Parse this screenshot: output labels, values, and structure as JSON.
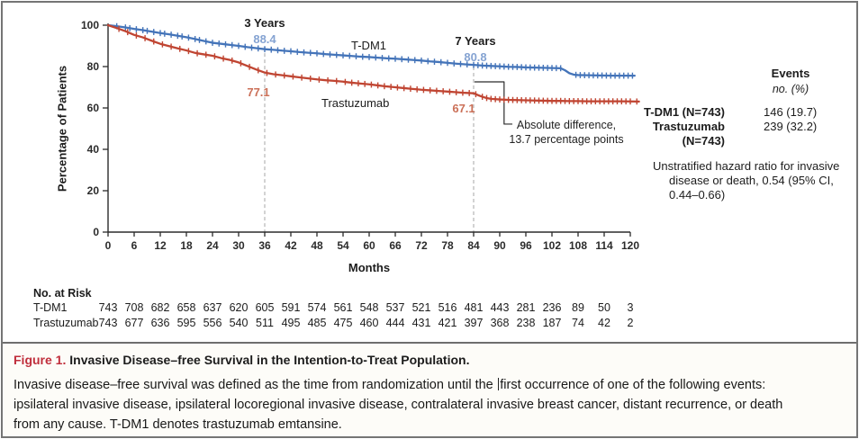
{
  "colors": {
    "tdm1": "#4474b9",
    "trastuzumab": "#c04532",
    "tdm1_value_label": "#85a3d2",
    "trastuzumab_value_label": "#cb7058",
    "dashed_reference": "#bbbbbb",
    "axis": "#2b2b2b",
    "caption_red": "#c02e3c"
  },
  "axes": {
    "y_label": "Percentage of Patients",
    "x_label": "Months"
  },
  "annotations": {
    "three_years": "3 Years",
    "tdm1_3y_value": "88.4",
    "tras_3y_value": "77.1",
    "seven_years": "7 Years",
    "tdm1_7y_value": "80.8",
    "tras_7y_value": "67.1",
    "tdm1_curve_label": "T-DM1",
    "tras_curve_label": "Trastuzumab",
    "abs_diff_line1": "Absolute difference,",
    "abs_diff_line2": "13.7 percentage points"
  },
  "stats_panel": {
    "events_header": "Events",
    "events_unit": "no. (%)",
    "rows": [
      {
        "label": "T-DM1 (N=743)",
        "value": "146 (19.7)"
      },
      {
        "label": "Trastuzumab",
        "value": "239 (32.2)"
      },
      {
        "label": "(N=743)",
        "value": ""
      }
    ],
    "hazard_line1": "Unstratified hazard ratio for invasive",
    "hazard_line2": "disease or death, 0.54 (95% CI,",
    "hazard_line3": "0.44–0.66)"
  },
  "caption": {
    "label": "Figure 1.",
    "title": "Invasive Disease–free Survival in the Intention-to-Treat Population.",
    "body_line1_a": "Invasive disease–free survival was defined as the time from randomization until the ",
    "body_line1_b": "first occurrence of one of the following events:",
    "body_line2": "ipsilateral invasive disease, ipsilateral locoregional invasive disease, contralateral invasive breast cancer, distant recurrence, or death",
    "body_line3": "from any cause. T-DM1 denotes trastuzumab emtansine."
  },
  "chart_data": {
    "type": "line",
    "subtype": "kaplan-meier",
    "title": "Invasive Disease-free Survival in the Intention-to-Treat Population",
    "xlabel": "Months",
    "ylabel": "Percentage of Patients",
    "xlim": [
      0,
      120
    ],
    "ylim": [
      0,
      100
    ],
    "x_ticks": [
      0,
      6,
      12,
      18,
      24,
      30,
      36,
      42,
      48,
      54,
      60,
      66,
      72,
      78,
      84,
      90,
      96,
      102,
      108,
      114,
      120
    ],
    "y_ticks": [
      0,
      20,
      40,
      60,
      80,
      100
    ],
    "grid": false,
    "legend_position": "inline-curve-labels",
    "landmarks": [
      {
        "label": "3 Years",
        "month": 36,
        "tdm1_pct": 88.4,
        "trastuzumab_pct": 77.1
      },
      {
        "label": "7 Years",
        "month": 84,
        "tdm1_pct": 80.8,
        "trastuzumab_pct": 67.1,
        "absolute_difference_points": 13.7
      }
    ],
    "reference_lines": [
      {
        "month": 36,
        "top_pct": 89.5
      },
      {
        "month": 84,
        "top_pct": 80.0
      }
    ],
    "callout_path": [
      [
        84.3,
        72.6
      ],
      [
        91,
        72.6
      ],
      [
        91,
        52.2
      ],
      [
        92.8,
        52.2
      ]
    ],
    "series": [
      {
        "name": "T-DM1",
        "n": 743,
        "events": "146 (19.7)",
        "color": "#4474b9",
        "points": [
          [
            0,
            100
          ],
          [
            2,
            99.5
          ],
          [
            4,
            98.9
          ],
          [
            6,
            98.2
          ],
          [
            8,
            97.6
          ],
          [
            10,
            96.9
          ],
          [
            12,
            96.2
          ],
          [
            14,
            95.6
          ],
          [
            16,
            94.9
          ],
          [
            18,
            94.2
          ],
          [
            20,
            93.3
          ],
          [
            22,
            92.4
          ],
          [
            24,
            91.5
          ],
          [
            26,
            91.0
          ],
          [
            28,
            90.5
          ],
          [
            30,
            90.0
          ],
          [
            32,
            89.4
          ],
          [
            34,
            88.9
          ],
          [
            36,
            88.4
          ],
          [
            38,
            88.1
          ],
          [
            40,
            87.7
          ],
          [
            42,
            87.4
          ],
          [
            44,
            87.0
          ],
          [
            46,
            86.7
          ],
          [
            48,
            86.4
          ],
          [
            50,
            86.0
          ],
          [
            52,
            85.7
          ],
          [
            54,
            85.4
          ],
          [
            56,
            85.1
          ],
          [
            58,
            84.8
          ],
          [
            60,
            84.6
          ],
          [
            62,
            84.3
          ],
          [
            64,
            84.0
          ],
          [
            66,
            83.8
          ],
          [
            68,
            83.5
          ],
          [
            70,
            83.2
          ],
          [
            72,
            82.9
          ],
          [
            74,
            82.5
          ],
          [
            76,
            82.2
          ],
          [
            78,
            81.8
          ],
          [
            80,
            81.4
          ],
          [
            82,
            81.1
          ],
          [
            84,
            80.8
          ],
          [
            86,
            80.5
          ],
          [
            88,
            80.3
          ],
          [
            90,
            80.1
          ],
          [
            92,
            79.9
          ],
          [
            94,
            79.8
          ],
          [
            96,
            79.6
          ],
          [
            98,
            79.5
          ],
          [
            100,
            79.4
          ],
          [
            102,
            79.3
          ],
          [
            104,
            79.2
          ],
          [
            105,
            78.2
          ],
          [
            106,
            76.8
          ],
          [
            107,
            76.1
          ],
          [
            108,
            75.9
          ],
          [
            110,
            75.8
          ],
          [
            113,
            75.7
          ],
          [
            116,
            75.6
          ],
          [
            121,
            75.6
          ]
        ],
        "censor_ticks": [
          2,
          4,
          5,
          6.5,
          8,
          9,
          10.5,
          12,
          13,
          14.5,
          16,
          17,
          18.5,
          20,
          21,
          22.5,
          24,
          25.5,
          27,
          28.5,
          30,
          31.5,
          33,
          34.5,
          36,
          37.5,
          39,
          40.5,
          42,
          43.5,
          45,
          46.5,
          48,
          49.5,
          51,
          52.5,
          54,
          55.5,
          57,
          58.5,
          60,
          61.5,
          63,
          64.5,
          66,
          67.5,
          69,
          70.5,
          72,
          73.5,
          75,
          76.5,
          78,
          79.5,
          81,
          82.5,
          84,
          85,
          86,
          87,
          88,
          89,
          90,
          91,
          92,
          93,
          94,
          95,
          96,
          97,
          98,
          99,
          100,
          101,
          102,
          103,
          104,
          107.5,
          108.5,
          109.5,
          110.5,
          111.5,
          112.5,
          113.5,
          114.5,
          115.5,
          116.5,
          117.5,
          118.5,
          119.5,
          120.5
        ]
      },
      {
        "name": "Trastuzumab",
        "n": 743,
        "events": "239 (32.2)",
        "color": "#c04532",
        "points": [
          [
            0,
            100
          ],
          [
            2,
            98.6
          ],
          [
            4,
            97.1
          ],
          [
            6,
            95.3
          ],
          [
            8,
            94.1
          ],
          [
            10,
            92.5
          ],
          [
            12,
            91.0
          ],
          [
            14,
            89.9
          ],
          [
            16,
            88.8
          ],
          [
            18,
            87.8
          ],
          [
            20,
            86.6
          ],
          [
            22,
            85.9
          ],
          [
            24,
            85.2
          ],
          [
            26,
            84.1
          ],
          [
            28,
            83.2
          ],
          [
            30,
            82.0
          ],
          [
            32,
            80.3
          ],
          [
            34,
            78.6
          ],
          [
            36,
            77.1
          ],
          [
            38,
            76.3
          ],
          [
            40,
            75.8
          ],
          [
            42,
            75.3
          ],
          [
            44,
            74.8
          ],
          [
            46,
            74.3
          ],
          [
            48,
            73.8
          ],
          [
            50,
            73.4
          ],
          [
            52,
            73.1
          ],
          [
            54,
            72.7
          ],
          [
            56,
            72.2
          ],
          [
            58,
            71.8
          ],
          [
            60,
            71.4
          ],
          [
            62,
            70.9
          ],
          [
            64,
            70.4
          ],
          [
            66,
            70.0
          ],
          [
            68,
            69.6
          ],
          [
            70,
            69.2
          ],
          [
            72,
            68.8
          ],
          [
            74,
            68.5
          ],
          [
            76,
            68.2
          ],
          [
            78,
            67.9
          ],
          [
            80,
            67.6
          ],
          [
            82,
            67.3
          ],
          [
            84,
            67.1
          ],
          [
            85,
            66.2
          ],
          [
            86,
            65.4
          ],
          [
            87,
            64.8
          ],
          [
            88,
            64.4
          ],
          [
            90,
            64.1
          ],
          [
            92,
            63.9
          ],
          [
            94,
            63.8
          ],
          [
            96,
            63.7
          ],
          [
            98,
            63.6
          ],
          [
            100,
            63.5
          ],
          [
            102,
            63.4
          ],
          [
            104,
            63.4
          ],
          [
            106,
            63.3
          ],
          [
            108,
            63.3
          ],
          [
            110,
            63.2
          ],
          [
            114,
            63.2
          ],
          [
            118,
            63.2
          ],
          [
            122,
            63.1
          ]
        ],
        "censor_ticks": [
          2.5,
          4.5,
          6.5,
          8.5,
          10.5,
          12.5,
          14.5,
          16.5,
          18.5,
          20.5,
          22.5,
          24.5,
          26.5,
          28.5,
          30.5,
          32.5,
          34.5,
          36.5,
          38.5,
          40.5,
          42.5,
          44.5,
          46.5,
          48.5,
          50.5,
          52.5,
          54.5,
          56,
          57.5,
          59,
          60.5,
          62,
          63.5,
          65,
          66.5,
          68,
          69.5,
          71,
          72.5,
          74,
          75.5,
          77,
          78.5,
          80,
          81.5,
          83,
          84.5,
          86,
          87,
          88,
          89,
          90,
          91,
          92,
          93,
          94,
          95,
          96,
          97,
          98,
          99,
          100,
          101,
          102,
          103,
          104,
          105,
          106,
          107,
          108,
          109,
          110,
          111,
          112,
          113,
          114,
          115,
          116,
          117,
          118,
          119,
          120,
          121.5
        ]
      }
    ],
    "risk_table": {
      "header": "No. at Risk",
      "months": [
        0,
        6,
        12,
        18,
        24,
        30,
        36,
        42,
        48,
        54,
        60,
        66,
        72,
        78,
        84,
        90,
        96,
        102,
        108,
        114,
        120
      ],
      "rows": [
        {
          "label": "T-DM1",
          "values": [
            743,
            708,
            682,
            658,
            637,
            620,
            605,
            591,
            574,
            561,
            548,
            537,
            521,
            516,
            481,
            443,
            281,
            236,
            89,
            50,
            3
          ]
        },
        {
          "label": "Trastuzumab",
          "values": [
            743,
            677,
            636,
            595,
            556,
            540,
            511,
            495,
            485,
            475,
            460,
            444,
            431,
            421,
            397,
            368,
            238,
            187,
            74,
            42,
            2
          ]
        }
      ]
    }
  }
}
